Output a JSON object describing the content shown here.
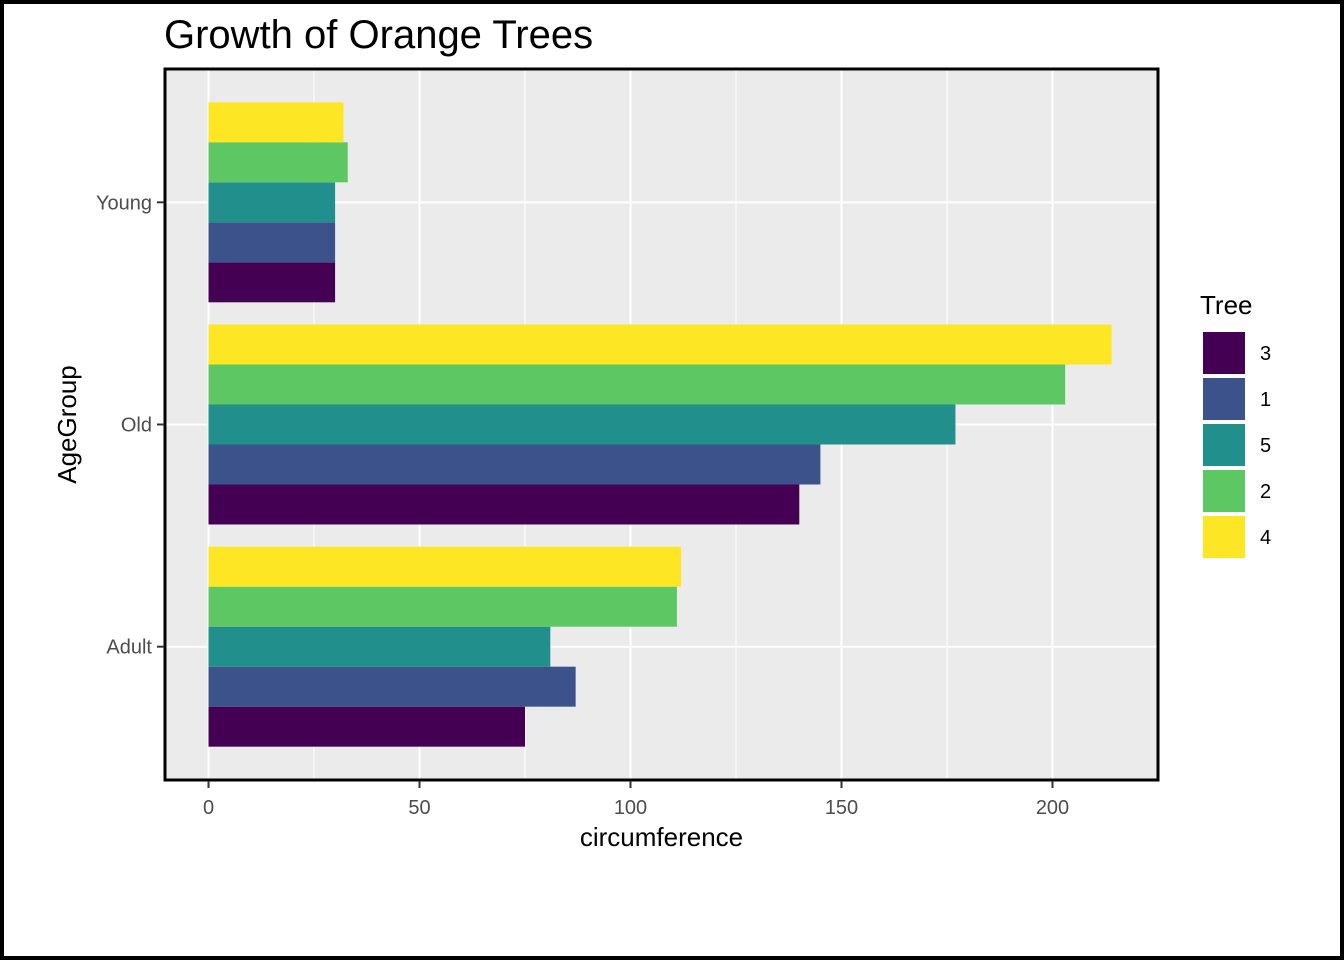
{
  "chart_data": {
    "type": "bar",
    "orientation": "horizontal",
    "title": "Growth of Orange Trees",
    "xlabel": "circumference",
    "ylabel": "AgeGroup",
    "categories": [
      "Adult",
      "Old",
      "Young"
    ],
    "xlim": [
      0,
      225
    ],
    "xticks": [
      0,
      50,
      100,
      150,
      200
    ],
    "grid": true,
    "legend_title": "Tree",
    "legend_position": "right",
    "series": [
      {
        "name": "3",
        "color": "#440154",
        "values": [
          75,
          140,
          30
        ]
      },
      {
        "name": "1",
        "color": "#3B528B",
        "values": [
          87,
          145,
          30
        ]
      },
      {
        "name": "5",
        "color": "#21908C",
        "values": [
          81,
          177,
          30
        ]
      },
      {
        "name": "2",
        "color": "#5DC863",
        "values": [
          111,
          203,
          33
        ]
      },
      {
        "name": "4",
        "color": "#FDE725",
        "values": [
          112,
          214,
          32
        ]
      }
    ]
  }
}
